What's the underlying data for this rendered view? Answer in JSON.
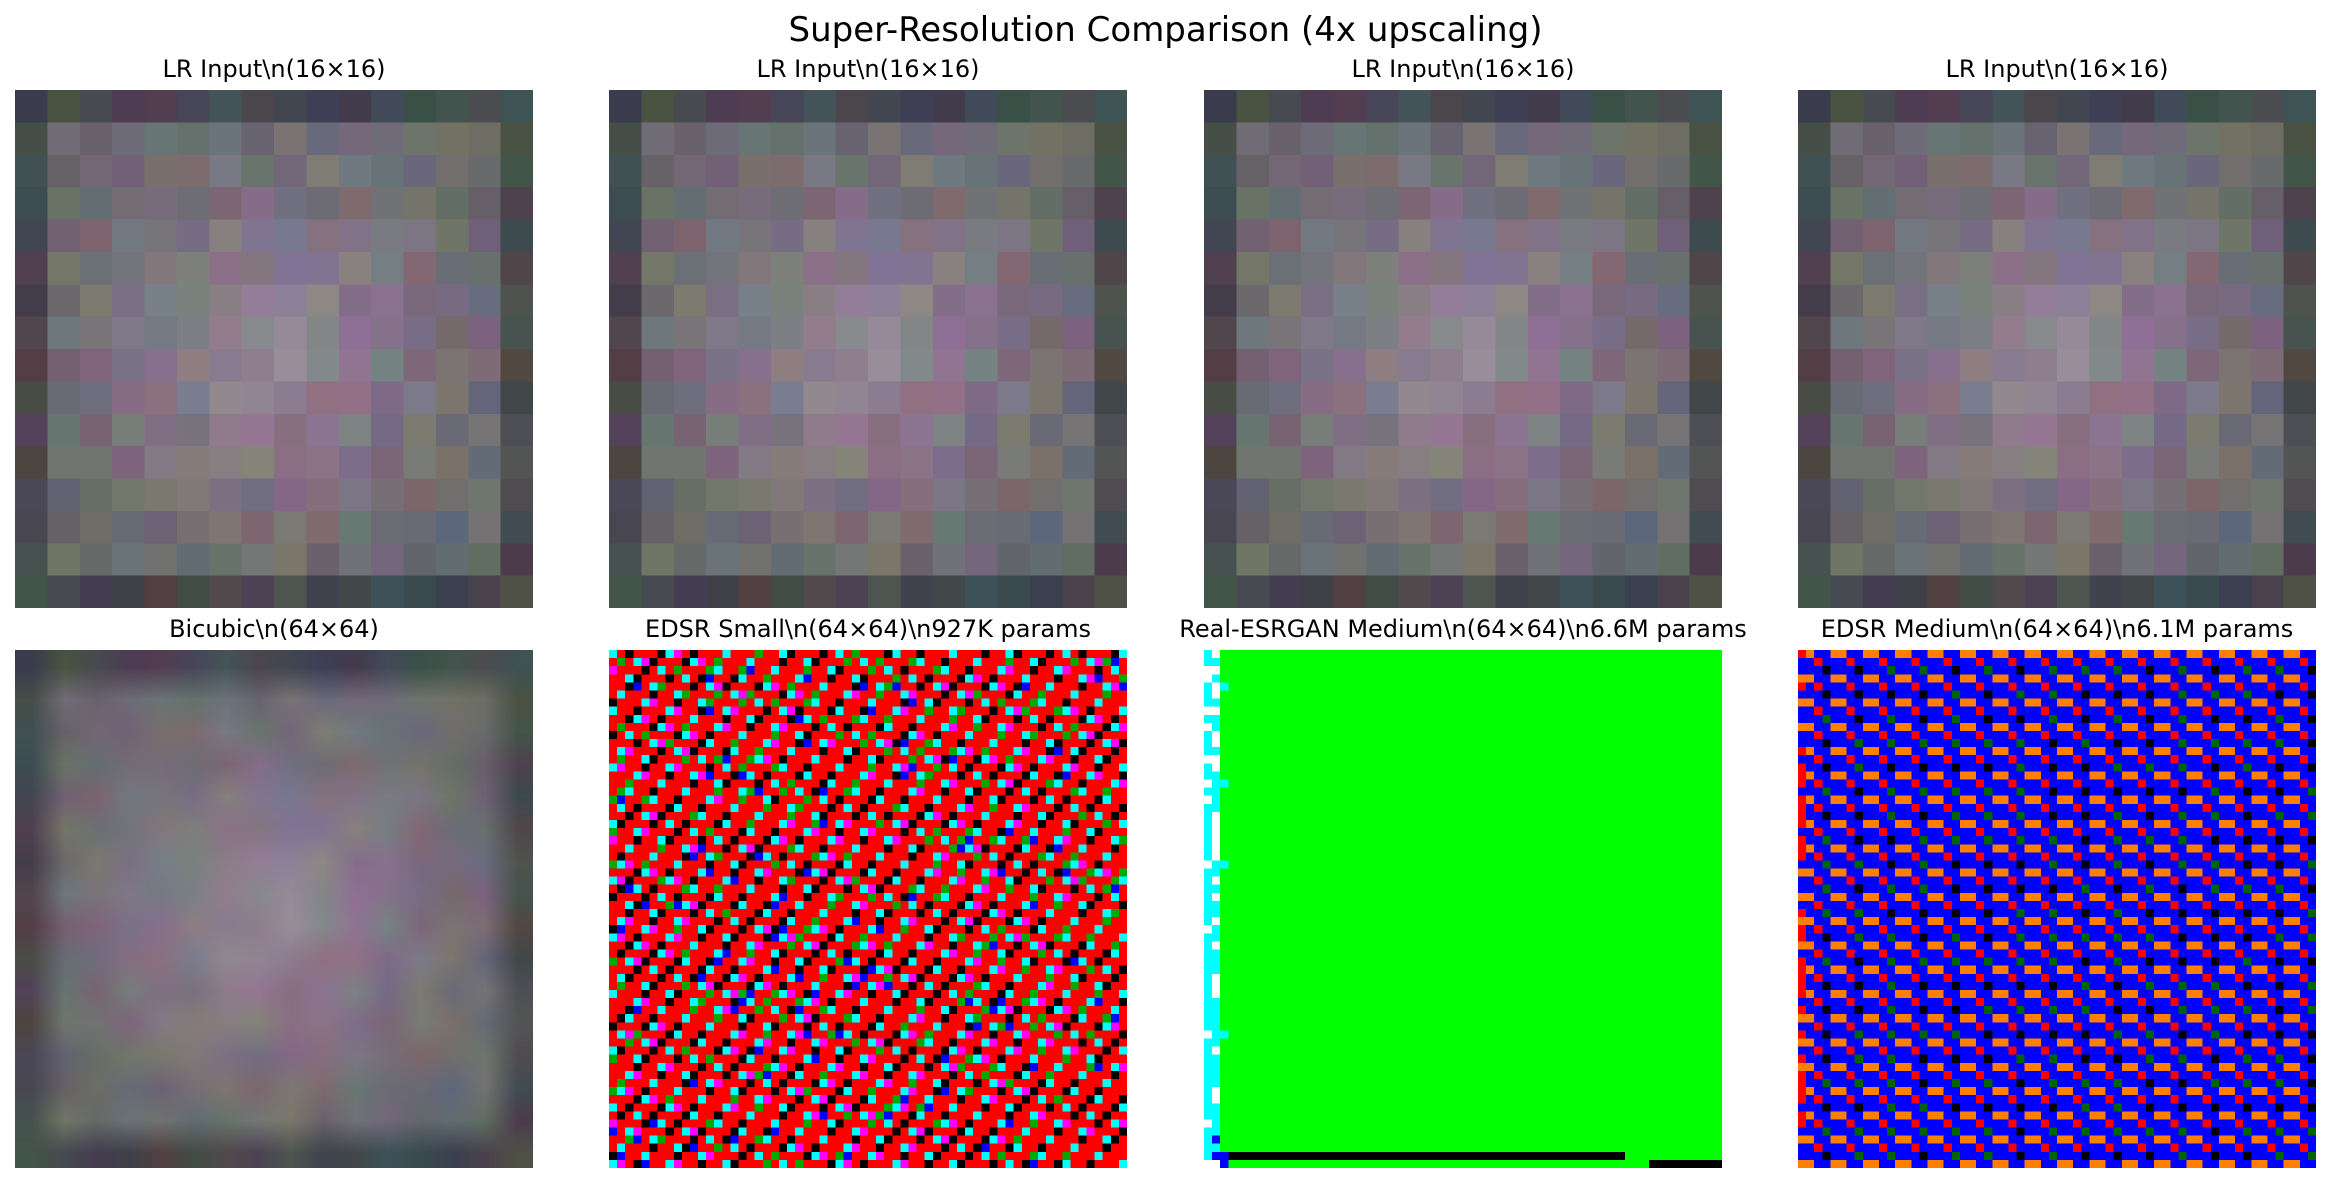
{
  "figure": {
    "title": "Super-Resolution Comparison (4x upscaling)"
  },
  "panels": [
    {
      "title": "LR Input\\n(16×16)",
      "image": "blurry-pinkish-gray-blob-16px",
      "colors": {
        "center": "#9a859b",
        "mid": "#6a6a6e",
        "border": "#3b3d41"
      }
    },
    {
      "title": "LR Input\\n(16×16)",
      "image": "blurry-pinkish-gray-blob-16px",
      "colors": {
        "center": "#9a859b",
        "mid": "#6a6a6e",
        "border": "#3b3d41"
      }
    },
    {
      "title": "LR Input\\n(16×16)",
      "image": "blurry-pinkish-gray-blob-16px",
      "colors": {
        "center": "#9a859b",
        "mid": "#6a6a6e",
        "border": "#3b3d41"
      }
    },
    {
      "title": "LR Input\\n(16×16)",
      "image": "blurry-pinkish-gray-blob-16px",
      "colors": {
        "center": "#9a859b",
        "mid": "#6a6a6e",
        "border": "#3b3d41"
      }
    },
    {
      "title": "Bicubic\\n(64×64)",
      "image": "smooth-bicubic-upscale-64px",
      "colors": {
        "center": "#9a859b",
        "mid": "#6a6a6e",
        "border": "#3b3d41"
      }
    },
    {
      "title": "EDSR Small\\n(64×64)\\n927K params",
      "image": "red-green-black-checker-artifact-64px",
      "colors": {
        "red": "#ff0000",
        "green": "#00aa00",
        "black": "#000000",
        "cyan": "#00ffff",
        "magenta": "#ff00ff",
        "blue": "#0000ff"
      }
    },
    {
      "title": "Real-ESRGAN Medium\\n(64×64)\\n6.6M params",
      "image": "solid-green-with-cyan-left-edge-64px",
      "colors": {
        "green": "#00ff00",
        "cyan": "#00ffff",
        "white": "#ffffff",
        "black": "#000000",
        "blue": "#0000ff"
      }
    },
    {
      "title": "EDSR Medium\\n(64×64)\\n6.1M params",
      "image": "blue-orange-red-pattern-artifact-64px",
      "colors": {
        "blue": "#0000ff",
        "orange": "#ff7f00",
        "red": "#ff0000",
        "black": "#000000",
        "darkgreen": "#006400"
      }
    }
  ]
}
